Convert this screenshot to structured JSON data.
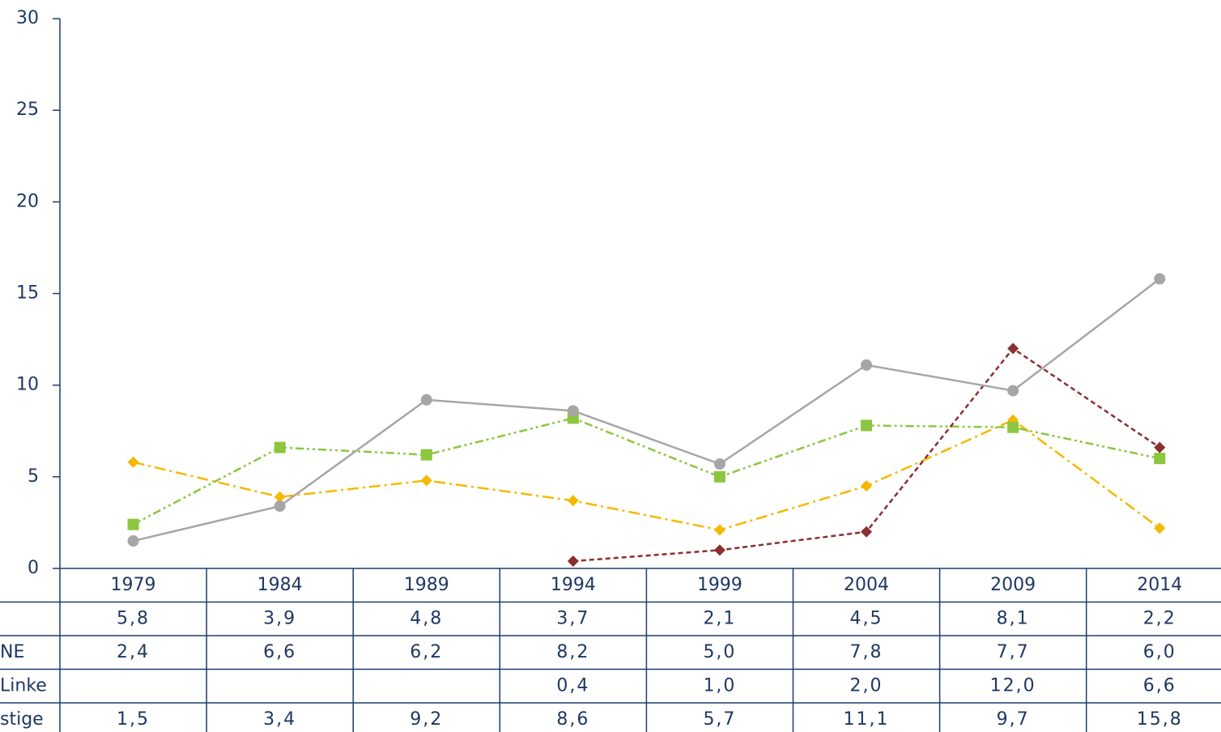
{
  "chart_data": {
    "type": "line",
    "categories": [
      "1979",
      "1984",
      "1989",
      "1994",
      "1999",
      "2004",
      "2009",
      "2014"
    ],
    "series": [
      {
        "color": "#f5b800",
        "marker": "diamond",
        "dash": "dashdot",
        "values": [
          5.8,
          3.9,
          4.8,
          3.7,
          2.1,
          4.5,
          8.1,
          2.2
        ],
        "value_labels": [
          "5,8",
          "3,9",
          "4,8",
          "3,7",
          "2,1",
          "4,5",
          "8,1",
          "2,2"
        ]
      },
      {
        "name": "NE",
        "color": "#8cc63f",
        "marker": "square",
        "dash": "dashdotdot",
        "values": [
          2.4,
          6.6,
          6.2,
          8.2,
          5.0,
          7.8,
          7.7,
          6.0
        ],
        "value_labels": [
          "2,4",
          "6,6",
          "6,2",
          "8,2",
          "5,0",
          "7,8",
          "7,7",
          "6,0"
        ]
      },
      {
        "name": "Linke",
        "color": "#8b2f2f",
        "marker": "diamond",
        "dash": "dashed",
        "values": [
          null,
          null,
          null,
          0.4,
          1.0,
          2.0,
          12.0,
          6.6
        ],
        "value_labels": [
          null,
          null,
          null,
          "0,4",
          "1,0",
          "2,0",
          "12,0",
          "6,6"
        ]
      },
      {
        "name": "stige",
        "color": "#a6a6a6",
        "marker": "circle",
        "dash": "solid",
        "values": [
          1.5,
          3.4,
          9.2,
          8.6,
          5.7,
          11.1,
          9.7,
          15.8
        ],
        "value_labels": [
          "1,5",
          "3,4",
          "9,2",
          "8,6",
          "5,7",
          "11,1",
          "9,7",
          "15,8"
        ]
      }
    ],
    "ylim": [
      0,
      30
    ],
    "yticks": [
      0,
      5,
      10,
      15,
      20,
      25,
      30
    ],
    "grid": false
  }
}
